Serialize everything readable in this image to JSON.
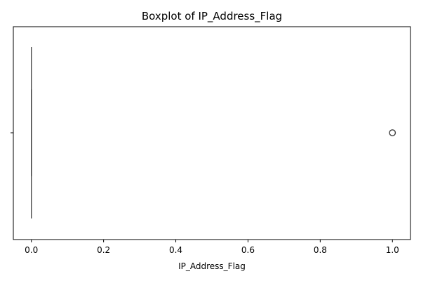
{
  "chart_data": {
    "type": "boxplot",
    "title": "Boxplot of IP_Address_Flag",
    "xlabel": "IP_Address_Flag",
    "ylabel": "",
    "orientation": "horizontal",
    "xlim": [
      -0.05,
      1.05
    ],
    "xticks": [
      0.0,
      0.2,
      0.4,
      0.6,
      0.8,
      1.0
    ],
    "xtick_labels": [
      "0.0",
      "0.2",
      "0.4",
      "0.6",
      "0.8",
      "1.0"
    ],
    "series": [
      {
        "min": 0.0,
        "q1": 0.0,
        "median": 0.0,
        "q3": 0.0,
        "max": 0.0,
        "outliers": [
          1.0
        ]
      }
    ],
    "grid": false,
    "colors": {
      "box_edge": "#3f3f3f",
      "outlier_edge": "#3f3f3f",
      "axes": "#000000"
    }
  }
}
